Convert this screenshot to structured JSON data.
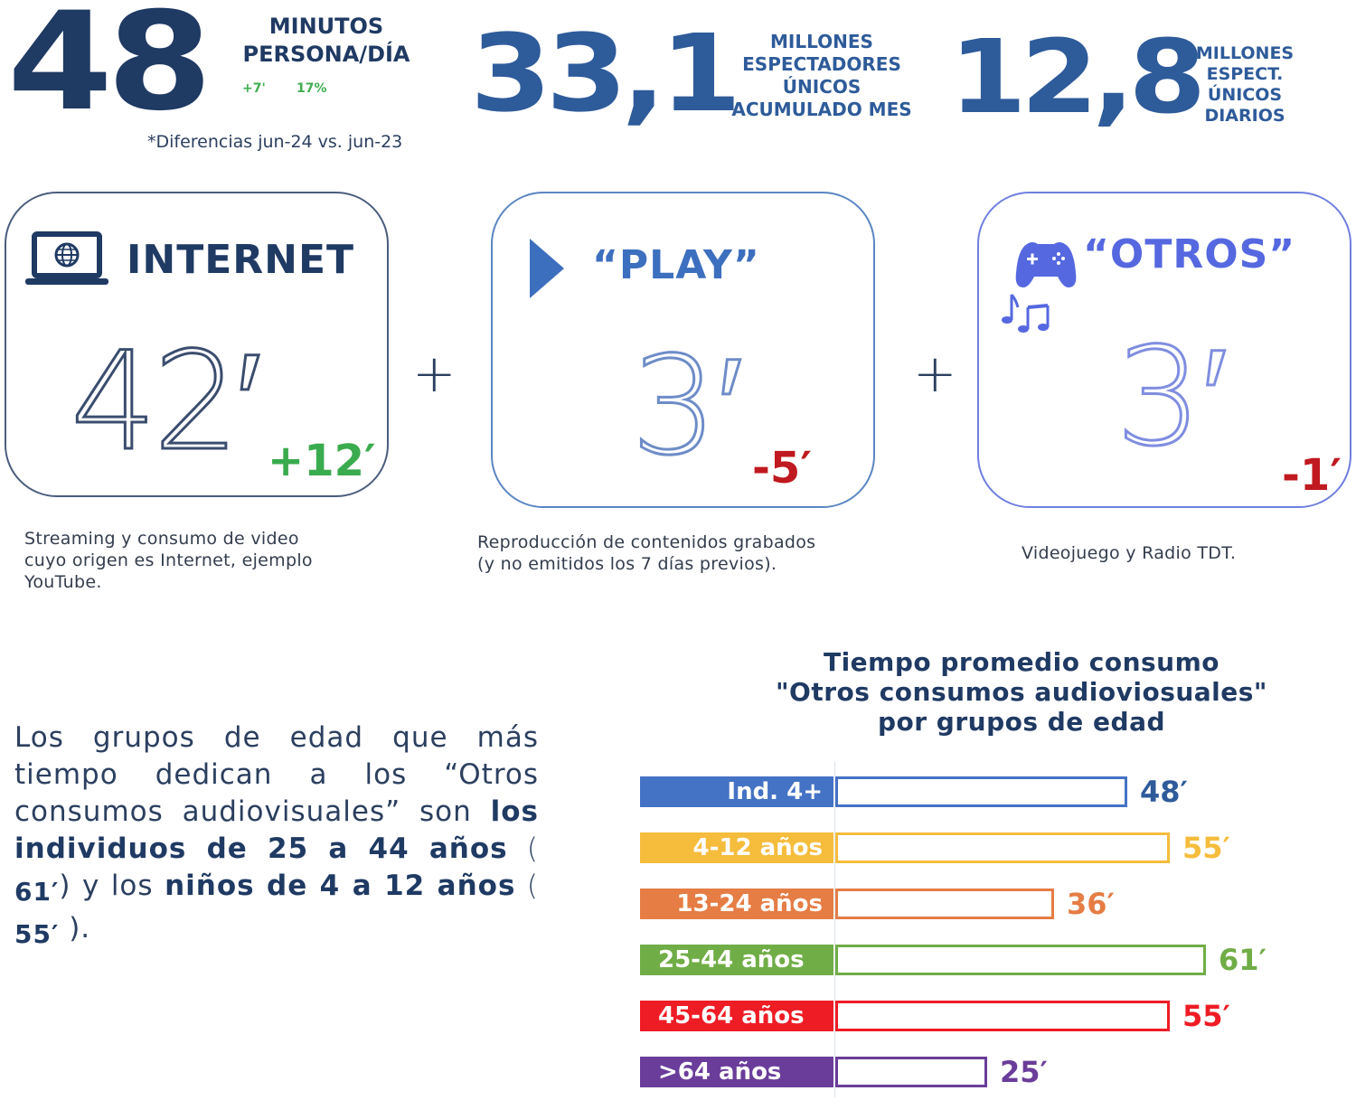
{
  "kpis": {
    "minutes": {
      "value": "48",
      "label_line1": "MINUTOS",
      "label_line2": "PERSONA/DÍA",
      "delta": "+7'",
      "delta_pct": "17%"
    },
    "note": "*Diferencias jun-24 vs. jun-23",
    "monthly_viewers": {
      "value": "33,1",
      "label_line1": "MILLONES",
      "label_line2": "ESPECTADORES",
      "label_line3": "ÚNICOS",
      "label_line4": "ACUMULADO MES"
    },
    "daily_viewers": {
      "value": "12,8",
      "label_line1": "MILLONES",
      "label_line2": "ESPECT.",
      "label_line3": "ÚNICOS",
      "label_line4": "DIARIOS"
    }
  },
  "cards": [
    {
      "title": "INTERNET",
      "icon": "laptop-globe-icon",
      "value": "42′",
      "delta": "+12′",
      "delta_color": "#3aab4e",
      "description_lines": [
        "Streaming y consumo de video",
        "cuyo origen es Internet, ejemplo",
        "YouTube."
      ]
    },
    {
      "title": "“PLAY”",
      "icon": "play-icon",
      "value": "3′",
      "delta": "-5′",
      "delta_color": "#c0191f",
      "description_lines": [
        "Reproducción de contenidos grabados",
        "(y no emitidos los 7 días previos)."
      ]
    },
    {
      "title": "“OTROS”",
      "icon": "gamepad-music-icon",
      "value": "3′",
      "delta": "-1′",
      "delta_color": "#c0191f",
      "description_lines": [
        "Videojuego y Radio TDT."
      ]
    }
  ],
  "operators": {
    "plus": "+"
  },
  "paragraph": {
    "part1": "Los grupos de edad que más tiempo dedican a los “Otros consumos audiovisuales”  son ",
    "bold1": "los individuos de 25 a 44 años",
    "paren_open1": " ( ",
    "num1": "61′",
    "paren_close1": ") y los ",
    "bold2": "niños de 4 a 12 años",
    "paren_open2": " ( ",
    "num2": "55′",
    "paren_close2": " )."
  },
  "chart_data": {
    "type": "bar",
    "orientation": "horizontal",
    "title": "Tiempo promedio consumo \"Otros consumos audioviosuales\" por grupos de edad",
    "title_lines": [
      "Tiempo promedio consumo",
      "\"Otros consumos audioviosuales\"",
      "por grupos de edad"
    ],
    "xlabel": "",
    "ylabel": "",
    "unit": "minutos",
    "categories": [
      "Ind. 4+",
      "4-12 años",
      "13-24 años",
      "25-44 años",
      "45-64 años",
      ">64 años"
    ],
    "values": [
      48,
      55,
      36,
      61,
      55,
      25
    ],
    "value_labels": [
      "48′",
      "55′",
      "36′",
      "61′",
      "55′",
      "25′"
    ],
    "colors": [
      "#4472c4",
      "#f6bc3c",
      "#e57d45",
      "#70ad47",
      "#ee1c25",
      "#6a3d9a"
    ],
    "grid": false,
    "legend": "none",
    "xlim": [
      0,
      61
    ]
  }
}
